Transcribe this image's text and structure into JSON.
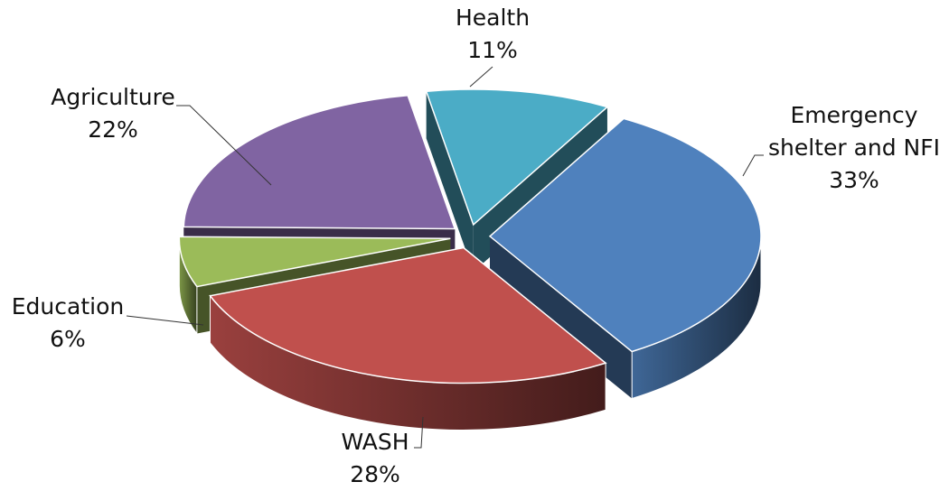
{
  "chart_data": {
    "type": "pie",
    "categories": [
      "Health",
      "Emergency shelter and NFI",
      "WASH",
      "Education",
      "Agriculture"
    ],
    "values": [
      11,
      33,
      28,
      6,
      22
    ],
    "value_labels": [
      "11%",
      "33%",
      "28%",
      "6%",
      "22%"
    ],
    "colors": [
      "#4bacc6",
      "#4f81bd",
      "#c0504d",
      "#9bbb59",
      "#8064a2"
    ]
  }
}
